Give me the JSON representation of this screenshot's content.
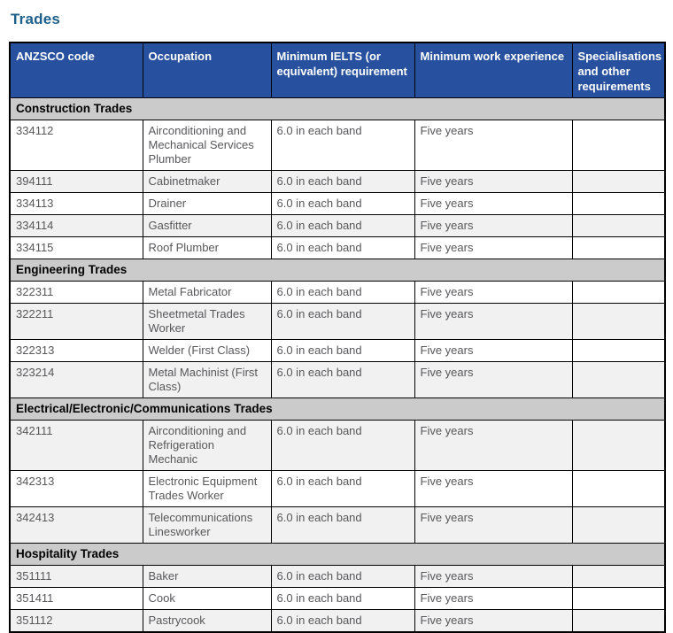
{
  "page": {
    "title": "Trades"
  },
  "colors": {
    "title_text": "#1E5F8C",
    "header_bg": "#27519E",
    "header_text": "#FFFFFF",
    "section_bg": "#CBCBCB",
    "row_alt_bg": "#F1F1F1",
    "cell_text": "#58585B",
    "border": "#000000"
  },
  "table": {
    "columns": [
      "ANZSCO code",
      "Occupation",
      "Minimum IELTS (or equivalent) requirement",
      "Minimum work experience",
      "Specialisations and other requirements"
    ],
    "sections": [
      {
        "title": "Construction Trades",
        "rows": [
          {
            "code": "334112",
            "occupation": "Airconditioning and Mechanical Services Plumber",
            "ielts": "6.0 in each band",
            "experience": "Five years",
            "specialisations": ""
          },
          {
            "code": "394111",
            "occupation": "Cabinetmaker",
            "ielts": "6.0 in each band",
            "experience": "Five years",
            "specialisations": ""
          },
          {
            "code": "334113",
            "occupation": "Drainer",
            "ielts": "6.0 in each band",
            "experience": "Five years",
            "specialisations": ""
          },
          {
            "code": "334114",
            "occupation": "Gasfitter",
            "ielts": "6.0 in each band",
            "experience": "Five years",
            "specialisations": ""
          },
          {
            "code": "334115",
            "occupation": "Roof Plumber",
            "ielts": "6.0 in each band",
            "experience": "Five years",
            "specialisations": ""
          }
        ]
      },
      {
        "title": "Engineering Trades",
        "rows": [
          {
            "code": "322311",
            "occupation": "Metal Fabricator",
            "ielts": "6.0 in each band",
            "experience": "Five years",
            "specialisations": ""
          },
          {
            "code": "322211",
            "occupation": "Sheetmetal Trades Worker",
            "ielts": "6.0 in each band",
            "experience": "Five years",
            "specialisations": ""
          },
          {
            "code": "322313",
            "occupation": "Welder (First Class)",
            "ielts": "6.0 in each band",
            "experience": "Five years",
            "specialisations": ""
          },
          {
            "code": "323214",
            "occupation": "Metal Machinist (First Class)",
            "ielts": "6.0 in each band",
            "experience": "Five years",
            "specialisations": ""
          }
        ]
      },
      {
        "title": "Electrical/Electronic/Communications Trades",
        "rows": [
          {
            "code": "342111",
            "occupation": "Airconditioning and Refrigeration Mechanic",
            "ielts": "6.0 in each band",
            "experience": "Five years",
            "specialisations": ""
          },
          {
            "code": "342313",
            "occupation": "Electronic Equipment Trades Worker",
            "ielts": "6.0 in each band",
            "experience": "Five years",
            "specialisations": ""
          },
          {
            "code": "342413",
            "occupation": "Telecommunications Linesworker",
            "ielts": "6.0 in each band",
            "experience": "Five years",
            "specialisations": ""
          }
        ]
      },
      {
        "title": "Hospitality Trades",
        "rows": [
          {
            "code": "351111",
            "occupation": "Baker",
            "ielts": "6.0 in each band",
            "experience": "Five years",
            "specialisations": ""
          },
          {
            "code": "351411",
            "occupation": "Cook",
            "ielts": "6.0 in each band",
            "experience": "Five years",
            "specialisations": ""
          },
          {
            "code": "351112",
            "occupation": "Pastrycook",
            "ielts": "6.0 in each band",
            "experience": "Five years",
            "specialisations": ""
          }
        ]
      }
    ]
  }
}
